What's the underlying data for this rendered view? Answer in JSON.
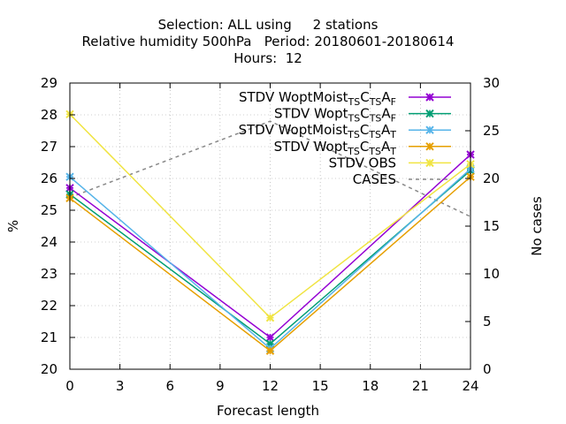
{
  "chart_data": {
    "type": "line",
    "title_lines": [
      "Selection: ALL using     2 stations",
      "Relative humidity 500hPa   Period: 20180601-20180614",
      "Hours:  12"
    ],
    "xlabel": "Forecast length",
    "ylabel": "%",
    "y2label": "No cases",
    "x": [
      0,
      12,
      24
    ],
    "xticks": [
      0,
      3,
      6,
      9,
      12,
      15,
      18,
      21,
      24
    ],
    "yticks": [
      20,
      21,
      22,
      23,
      24,
      25,
      26,
      27,
      28,
      29
    ],
    "y2ticks": [
      0,
      5,
      10,
      15,
      20,
      25,
      30
    ],
    "xlim": [
      0,
      24
    ],
    "ylim": [
      20,
      29
    ],
    "y2lim": [
      0,
      30
    ],
    "grid": true,
    "legend_position": "top-right",
    "series": [
      {
        "name_parts": [
          [
            "STDV WoptMoist",
            ""
          ],
          [
            "TS",
            "sub"
          ],
          [
            "C",
            ""
          ],
          [
            "TS",
            "sub"
          ],
          [
            "A",
            ""
          ],
          [
            "F",
            "sub"
          ]
        ],
        "color": "#9400d3",
        "values": [
          25.7,
          21.0,
          26.75
        ]
      },
      {
        "name_parts": [
          [
            "STDV Wopt",
            ""
          ],
          [
            "TS",
            "sub"
          ],
          [
            "C",
            ""
          ],
          [
            "TS",
            "sub"
          ],
          [
            "A",
            ""
          ],
          [
            "F",
            "sub"
          ]
        ],
        "color": "#009e73",
        "values": [
          25.5,
          20.8,
          26.25
        ]
      },
      {
        "name_parts": [
          [
            "STDV WoptMoist",
            ""
          ],
          [
            "TS",
            "sub"
          ],
          [
            "C",
            ""
          ],
          [
            "TS",
            "sub"
          ],
          [
            "A",
            ""
          ],
          [
            "T",
            "sub"
          ]
        ],
        "color": "#56b4e9",
        "values": [
          26.05,
          20.65,
          26.3
        ]
      },
      {
        "name_parts": [
          [
            "STDV Wopt",
            ""
          ],
          [
            "TS",
            "sub"
          ],
          [
            "C",
            ""
          ],
          [
            "TS",
            "sub"
          ],
          [
            "A",
            ""
          ],
          [
            "T",
            "sub"
          ]
        ],
        "color": "#e69f00",
        "values": [
          25.38,
          20.58,
          26.05
        ]
      },
      {
        "name_parts": [
          [
            "STDV OBS",
            ""
          ]
        ],
        "color": "#f0e442",
        "values": [
          28.02,
          21.62,
          26.45
        ]
      }
    ],
    "cases": {
      "name": "CASES",
      "color": "#888888",
      "axis": "y2",
      "values": [
        18,
        26,
        16
      ]
    }
  }
}
